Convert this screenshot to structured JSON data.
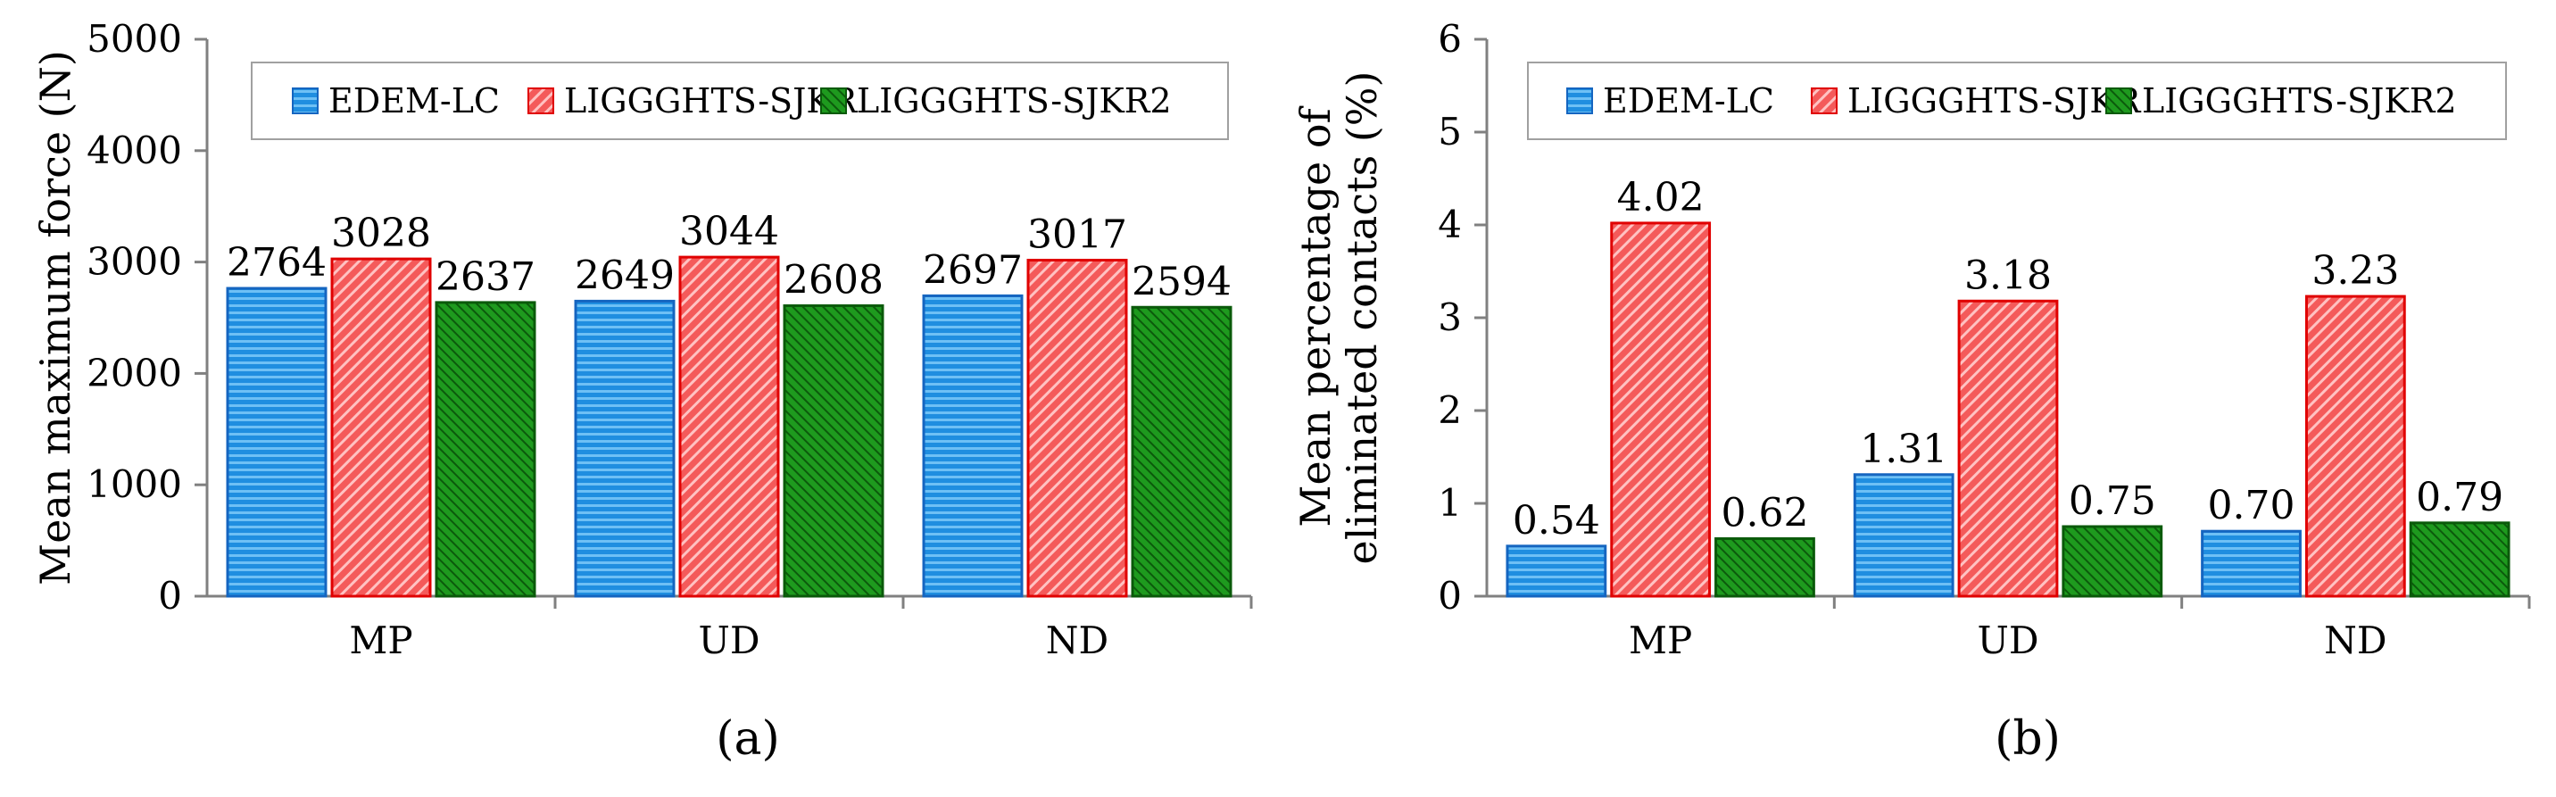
{
  "chart_data": [
    {
      "type": "bar",
      "panel_label": "(a)",
      "ylabel_lines": [
        "Mean maximum force (N)"
      ],
      "xlabel": "",
      "categories": [
        "MP",
        "UD",
        "ND"
      ],
      "ylim": [
        0,
        5000
      ],
      "yticks": [
        "0",
        "1000",
        "2000",
        "3000",
        "4000",
        "5000"
      ],
      "grid": false,
      "legend_position": "top",
      "series": [
        {
          "name": "EDEM-LC",
          "values": [
            2764,
            2649,
            2697
          ],
          "labels": [
            "2764",
            "2649",
            "2697"
          ],
          "color": "#1f8ee0",
          "edge": "#1565c0",
          "pattern": "horizontal-lines"
        },
        {
          "name": "LIGGGHTS-SJKR",
          "values": [
            3028,
            3044,
            3017
          ],
          "labels": [
            "3028",
            "3044",
            "3017"
          ],
          "color": "#f45a5a",
          "edge": "#e00000",
          "pattern": "diagonal-lines"
        },
        {
          "name": "LIGGGHTS-SJKR2",
          "values": [
            2637,
            2608,
            2594
          ],
          "labels": [
            "2637",
            "2608",
            "2594"
          ],
          "color": "#1e9a1e",
          "edge": "#0a5a0a",
          "pattern": "dense-diagonal"
        }
      ]
    },
    {
      "type": "bar",
      "panel_label": "(b)",
      "ylabel_lines": [
        "Mean percentage of",
        "eliminated contacts (%)"
      ],
      "xlabel": "",
      "categories": [
        "MP",
        "UD",
        "ND"
      ],
      "ylim": [
        0,
        6
      ],
      "yticks": [
        "0",
        "1",
        "2",
        "3",
        "4",
        "5",
        "6"
      ],
      "grid": false,
      "legend_position": "top",
      "series": [
        {
          "name": "EDEM-LC",
          "values": [
            0.54,
            1.31,
            0.7
          ],
          "labels": [
            "0.54",
            "1.31",
            "0.70"
          ],
          "color": "#1f8ee0",
          "edge": "#1565c0",
          "pattern": "horizontal-lines"
        },
        {
          "name": "LIGGGHTS-SJKR",
          "values": [
            4.02,
            3.18,
            3.23
          ],
          "labels": [
            "4.02",
            "3.18",
            "3.23"
          ],
          "color": "#f45a5a",
          "edge": "#e00000",
          "pattern": "diagonal-lines"
        },
        {
          "name": "LIGGGHTS-SJKR2",
          "values": [
            0.62,
            0.75,
            0.79
          ],
          "labels": [
            "0.62",
            "0.75",
            "0.79"
          ],
          "color": "#1e9a1e",
          "edge": "#0a5a0a",
          "pattern": "dense-diagonal"
        }
      ]
    }
  ]
}
